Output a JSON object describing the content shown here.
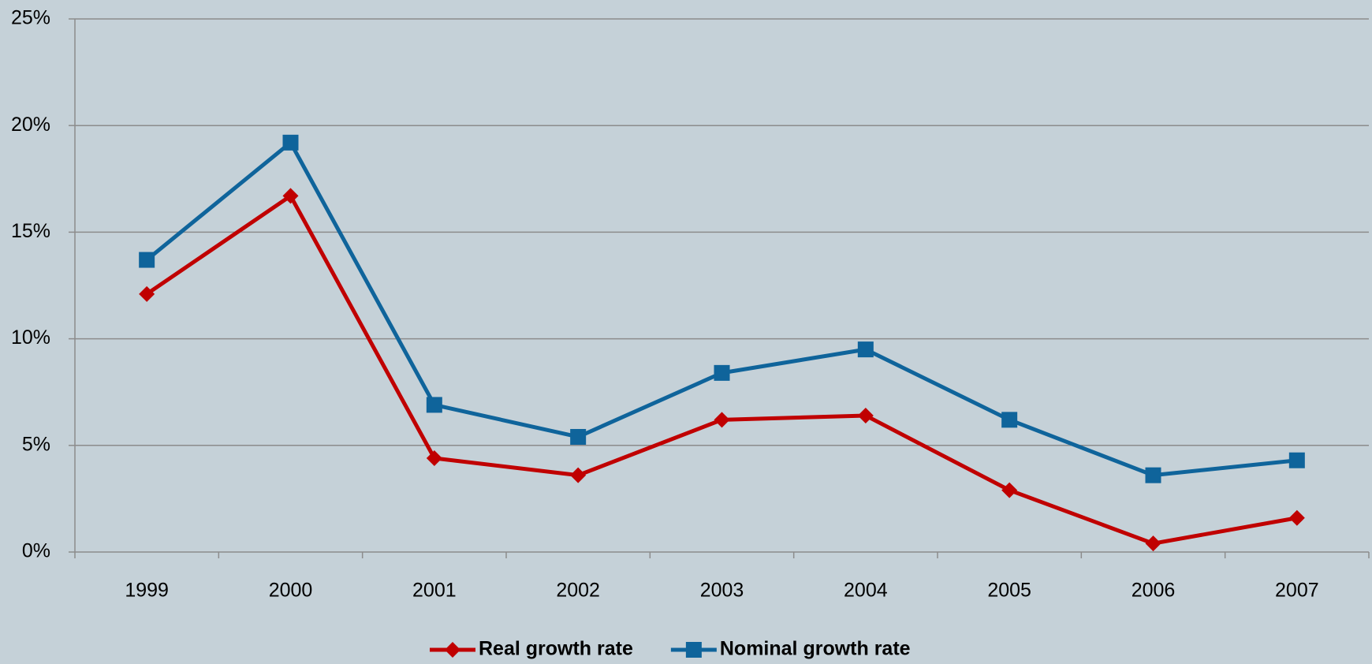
{
  "chart_data": {
    "type": "line",
    "categories": [
      "1999",
      "2000",
      "2001",
      "2002",
      "2003",
      "2004",
      "2005",
      "2006",
      "2007"
    ],
    "series": [
      {
        "name": "Real growth rate",
        "color": "#c00000",
        "marker": "diamond",
        "values": [
          12.1,
          16.7,
          4.4,
          3.6,
          6.2,
          6.4,
          2.9,
          0.4,
          1.6
        ]
      },
      {
        "name": "Nominal growth rate",
        "color": "#0f649b",
        "marker": "square",
        "values": [
          13.7,
          19.2,
          6.9,
          5.4,
          8.4,
          9.5,
          6.2,
          3.6,
          4.3
        ]
      }
    ],
    "ylim": [
      0,
      25
    ],
    "yticks": [
      {
        "value": 0,
        "label": "0%"
      },
      {
        "value": 5,
        "label": "5%"
      },
      {
        "value": 10,
        "label": "10%"
      },
      {
        "value": 15,
        "label": "15%"
      },
      {
        "value": 20,
        "label": "20%"
      },
      {
        "value": 25,
        "label": "25%"
      }
    ],
    "grid": true,
    "legend": "bottom"
  }
}
